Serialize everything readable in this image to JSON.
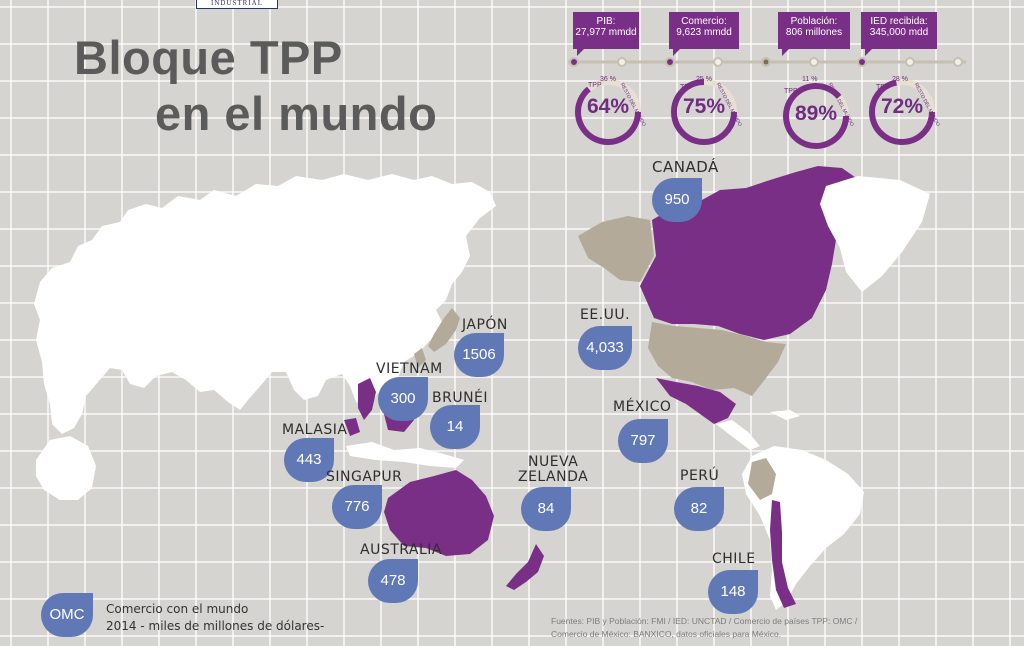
{
  "logo_text": "INDUSTRIAL",
  "title": {
    "line1": "Bloque TPP",
    "line2": "en el mundo"
  },
  "colors": {
    "tpp_member": "#7a2f86",
    "other_highlight": "#b3aa9a",
    "land": "#ffffff",
    "drop_marker": "#6178b6",
    "background": "#d6d4d1"
  },
  "stats": [
    {
      "label": "PIB:",
      "value": "27,977 mmdd",
      "tpp_label": "TPP",
      "tpp_share_text": "36 %",
      "rest_label": "RESTO DEL MUNDO",
      "percent_text": "64%",
      "percent": 64
    },
    {
      "label": "Comercio:",
      "value": "9,623 mmdd",
      "tpp_label": "TPP",
      "tpp_share_text": "25 %",
      "rest_label": "RESTO DEL MUNDO",
      "percent_text": "75%",
      "percent": 75
    },
    {
      "label": "Población:",
      "value": "806 millones",
      "tpp_label": "TPP",
      "tpp_share_text": "11 %",
      "rest_label": "RESTO DEL MUNDO",
      "percent_text": "89%",
      "percent": 89
    },
    {
      "label": "IED recibida:",
      "value": "345,000 mdd",
      "tpp_label": "TPP",
      "tpp_share_text": "28 %",
      "rest_label": "RESTO DEL MUNDO",
      "percent_text": "72%",
      "percent": 72
    }
  ],
  "countries": [
    {
      "name": "CANADÁ",
      "value": "950"
    },
    {
      "name": "EE.UU.",
      "value": "4,033"
    },
    {
      "name": "MÉXICO",
      "value": "797"
    },
    {
      "name": "PERÚ",
      "value": "82"
    },
    {
      "name": "CHILE",
      "value": "148"
    },
    {
      "name": "JAPÓN",
      "value": "1506"
    },
    {
      "name": "VIETNAM",
      "value": "300"
    },
    {
      "name": "BRUNÉI",
      "value": "14"
    },
    {
      "name": "MALASIA",
      "value": "443"
    },
    {
      "name": "SINGAPUR",
      "value": "776"
    },
    {
      "name": "AUSTRALIA",
      "value": "478"
    },
    {
      "name_line1": "NUEVA",
      "name_line2": "ZELANDA",
      "value": "84"
    }
  ],
  "legend": {
    "marker": "OMC",
    "line1": "Comercio con el mundo",
    "line2": "2014 - miles de millones de dólares-"
  },
  "sources": {
    "line1": "Fuentes: PIB y Población: FMI   /   IED: UNCTAD   / Comercio de países TPP: OMC /",
    "line2": "Comercio de México: BANXICO, datos oficiales para México."
  }
}
